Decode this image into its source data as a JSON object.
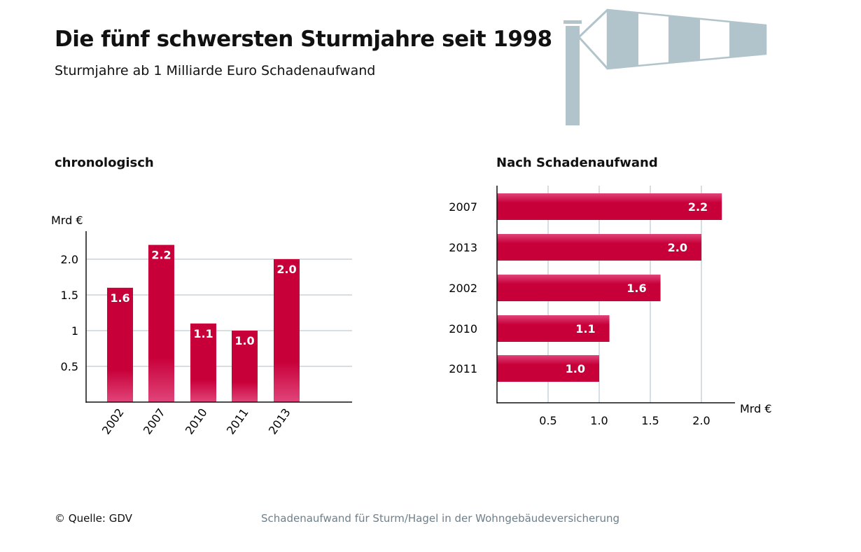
{
  "title": "Die fünf schwersten Sturmjahre seit 1998",
  "subtitle": "Sturmjahre ab 1 Milliarde Euro Schadenaufwand",
  "source": "© Quelle: GDV",
  "footnote": "Schadenaufwand für Sturm/Hagel in der Wohngebäudeversicherung",
  "colors": {
    "bar": "#c8003a",
    "bar_light": "#e0457a",
    "grid": "#c9d3d8",
    "windsock": "#b2c4cb"
  },
  "icons": {
    "decoration": "windsock-icon"
  },
  "chart_data": [
    {
      "type": "bar",
      "title": "chronologisch",
      "ylabel": "Mrd €",
      "categories": [
        "2002",
        "2007",
        "2010",
        "2011",
        "2013"
      ],
      "values": [
        1.6,
        2.2,
        1.1,
        1.0,
        2.0
      ],
      "data_labels": [
        "1.6",
        "2.2",
        "1.1",
        "1.0",
        "2.0"
      ],
      "yticks": [
        "0.5",
        "1",
        "1.5",
        "2.0"
      ],
      "ytick_values": [
        0.5,
        1,
        1.5,
        2.0
      ],
      "ylim": [
        0,
        2.35
      ],
      "grid": true
    },
    {
      "type": "bar",
      "orientation": "horizontal",
      "title": "Nach Schadenaufwand",
      "xlabel": "Mrd €",
      "categories": [
        "2007",
        "2013",
        "2002",
        "2010",
        "2011"
      ],
      "values": [
        2.2,
        2.0,
        1.6,
        1.1,
        1.0
      ],
      "data_labels": [
        "2.2",
        "2.0",
        "1.6",
        "1.1",
        "1.0"
      ],
      "xticks": [
        "0.5",
        "1.0",
        "1.5",
        "2.0"
      ],
      "xtick_values": [
        0.5,
        1.0,
        1.5,
        2.0
      ],
      "xlim": [
        0,
        2.5
      ],
      "grid": true
    }
  ]
}
